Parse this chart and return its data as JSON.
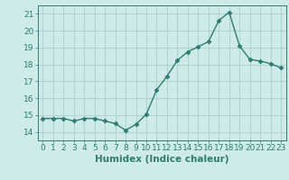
{
  "x": [
    0,
    1,
    2,
    3,
    4,
    5,
    6,
    7,
    8,
    9,
    10,
    11,
    12,
    13,
    14,
    15,
    16,
    17,
    18,
    19,
    20,
    21,
    22,
    23
  ],
  "y": [
    14.8,
    14.8,
    14.8,
    14.65,
    14.8,
    14.8,
    14.65,
    14.5,
    14.1,
    14.45,
    15.05,
    16.5,
    17.3,
    18.25,
    18.75,
    19.05,
    19.35,
    20.6,
    21.1,
    19.1,
    18.3,
    18.2,
    18.05,
    17.8
  ],
  "line_color": "#2e7d6e",
  "marker": "D",
  "marker_size": 2.5,
  "bg_color": "#ceeaea",
  "grid_color": "#b0d4d4",
  "xlabel": "Humidex (Indice chaleur)",
  "ylim": [
    13.5,
    21.5
  ],
  "yticks": [
    14,
    15,
    16,
    17,
    18,
    19,
    20,
    21
  ],
  "xticks": [
    0,
    1,
    2,
    3,
    4,
    5,
    6,
    7,
    8,
    9,
    10,
    11,
    12,
    13,
    14,
    15,
    16,
    17,
    18,
    19,
    20,
    21,
    22,
    23
  ],
  "font_color": "#2e7d6e",
  "tick_fontsize": 6.5,
  "xlabel_fontsize": 7.5
}
